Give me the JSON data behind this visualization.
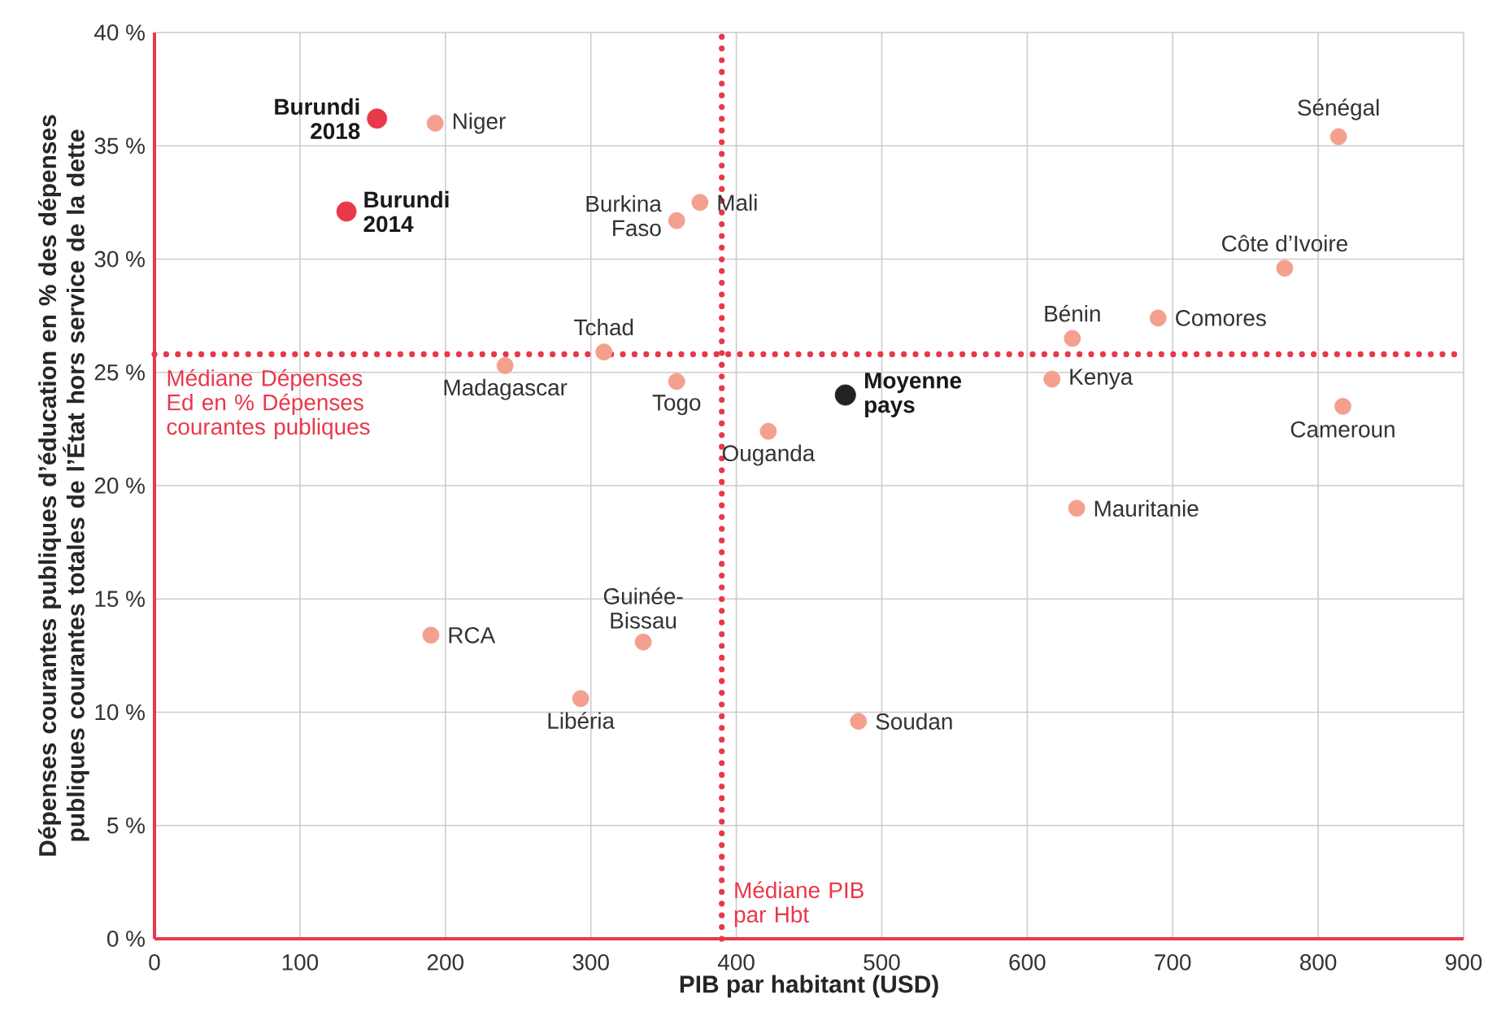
{
  "chart_data": {
    "type": "scatter",
    "xlabel": "PIB par habitant (USD)",
    "ylabel": "Dépenses courantes publiques d’éducation en % des dépenses publiques courantes totales de l’État hors service de la dette",
    "xlim": [
      0,
      900
    ],
    "ylim": [
      0,
      40
    ],
    "xticks": [
      0,
      100,
      200,
      300,
      400,
      500,
      600,
      700,
      800,
      900
    ],
    "yticks": [
      {
        "value": 0,
        "label": "0 %"
      },
      {
        "value": 5,
        "label": "5 %"
      },
      {
        "value": 10,
        "label": "10 %"
      },
      {
        "value": 15,
        "label": "15 %"
      },
      {
        "value": 20,
        "label": "20 %"
      },
      {
        "value": 25,
        "label": "25 %"
      },
      {
        "value": 30,
        "label": "30 %"
      },
      {
        "value": 35,
        "label": "35 %"
      },
      {
        "value": 40,
        "label": "40 %"
      }
    ],
    "grid": true,
    "marker": "circle",
    "series": [
      {
        "color": "#f4a08f",
        "x": [
          193,
          359,
          375,
          309,
          241,
          359,
          422,
          631,
          690,
          617,
          777,
          814,
          817,
          634,
          190,
          336,
          293,
          484
        ],
        "values": [
          36.0,
          31.7,
          32.5,
          25.9,
          25.3,
          24.6,
          22.4,
          26.5,
          27.4,
          24.7,
          29.6,
          35.4,
          23.5,
          19.0,
          13.4,
          13.1,
          10.6,
          9.6
        ],
        "value_labels": [
          "Niger",
          "Burkina Faso",
          "Mali",
          "Tchad",
          "Madagascar",
          "Togo",
          "Ouganda",
          "Bénin",
          "Comores",
          "Kenya",
          "Côte d’Ivoire",
          "Sénégal",
          "Cameroun",
          "Mauritanie",
          "RCA",
          "Guinée-Bissau",
          "Libéria",
          "Soudan"
        ]
      },
      {
        "color": "#e8384a",
        "x": [
          153,
          132
        ],
        "values": [
          36.2,
          32.1
        ],
        "value_labels": [
          "Burundi 2018",
          "Burundi 2014"
        ]
      },
      {
        "color": "#222222",
        "x": [
          475
        ],
        "values": [
          24.0
        ],
        "value_labels": [
          "Moyenne pays"
        ]
      }
    ],
    "ref_lines": [
      {
        "axis": "y",
        "value": 25.8,
        "label": "Médiane Dépenses Ed en % Dépenses courantes publiques",
        "color": "#e8384a",
        "line_style": "dotted"
      },
      {
        "axis": "x",
        "value": 390,
        "label": "Médiane PIB par Hbt",
        "color": "#e8384a",
        "line_style": "dotted"
      }
    ]
  }
}
